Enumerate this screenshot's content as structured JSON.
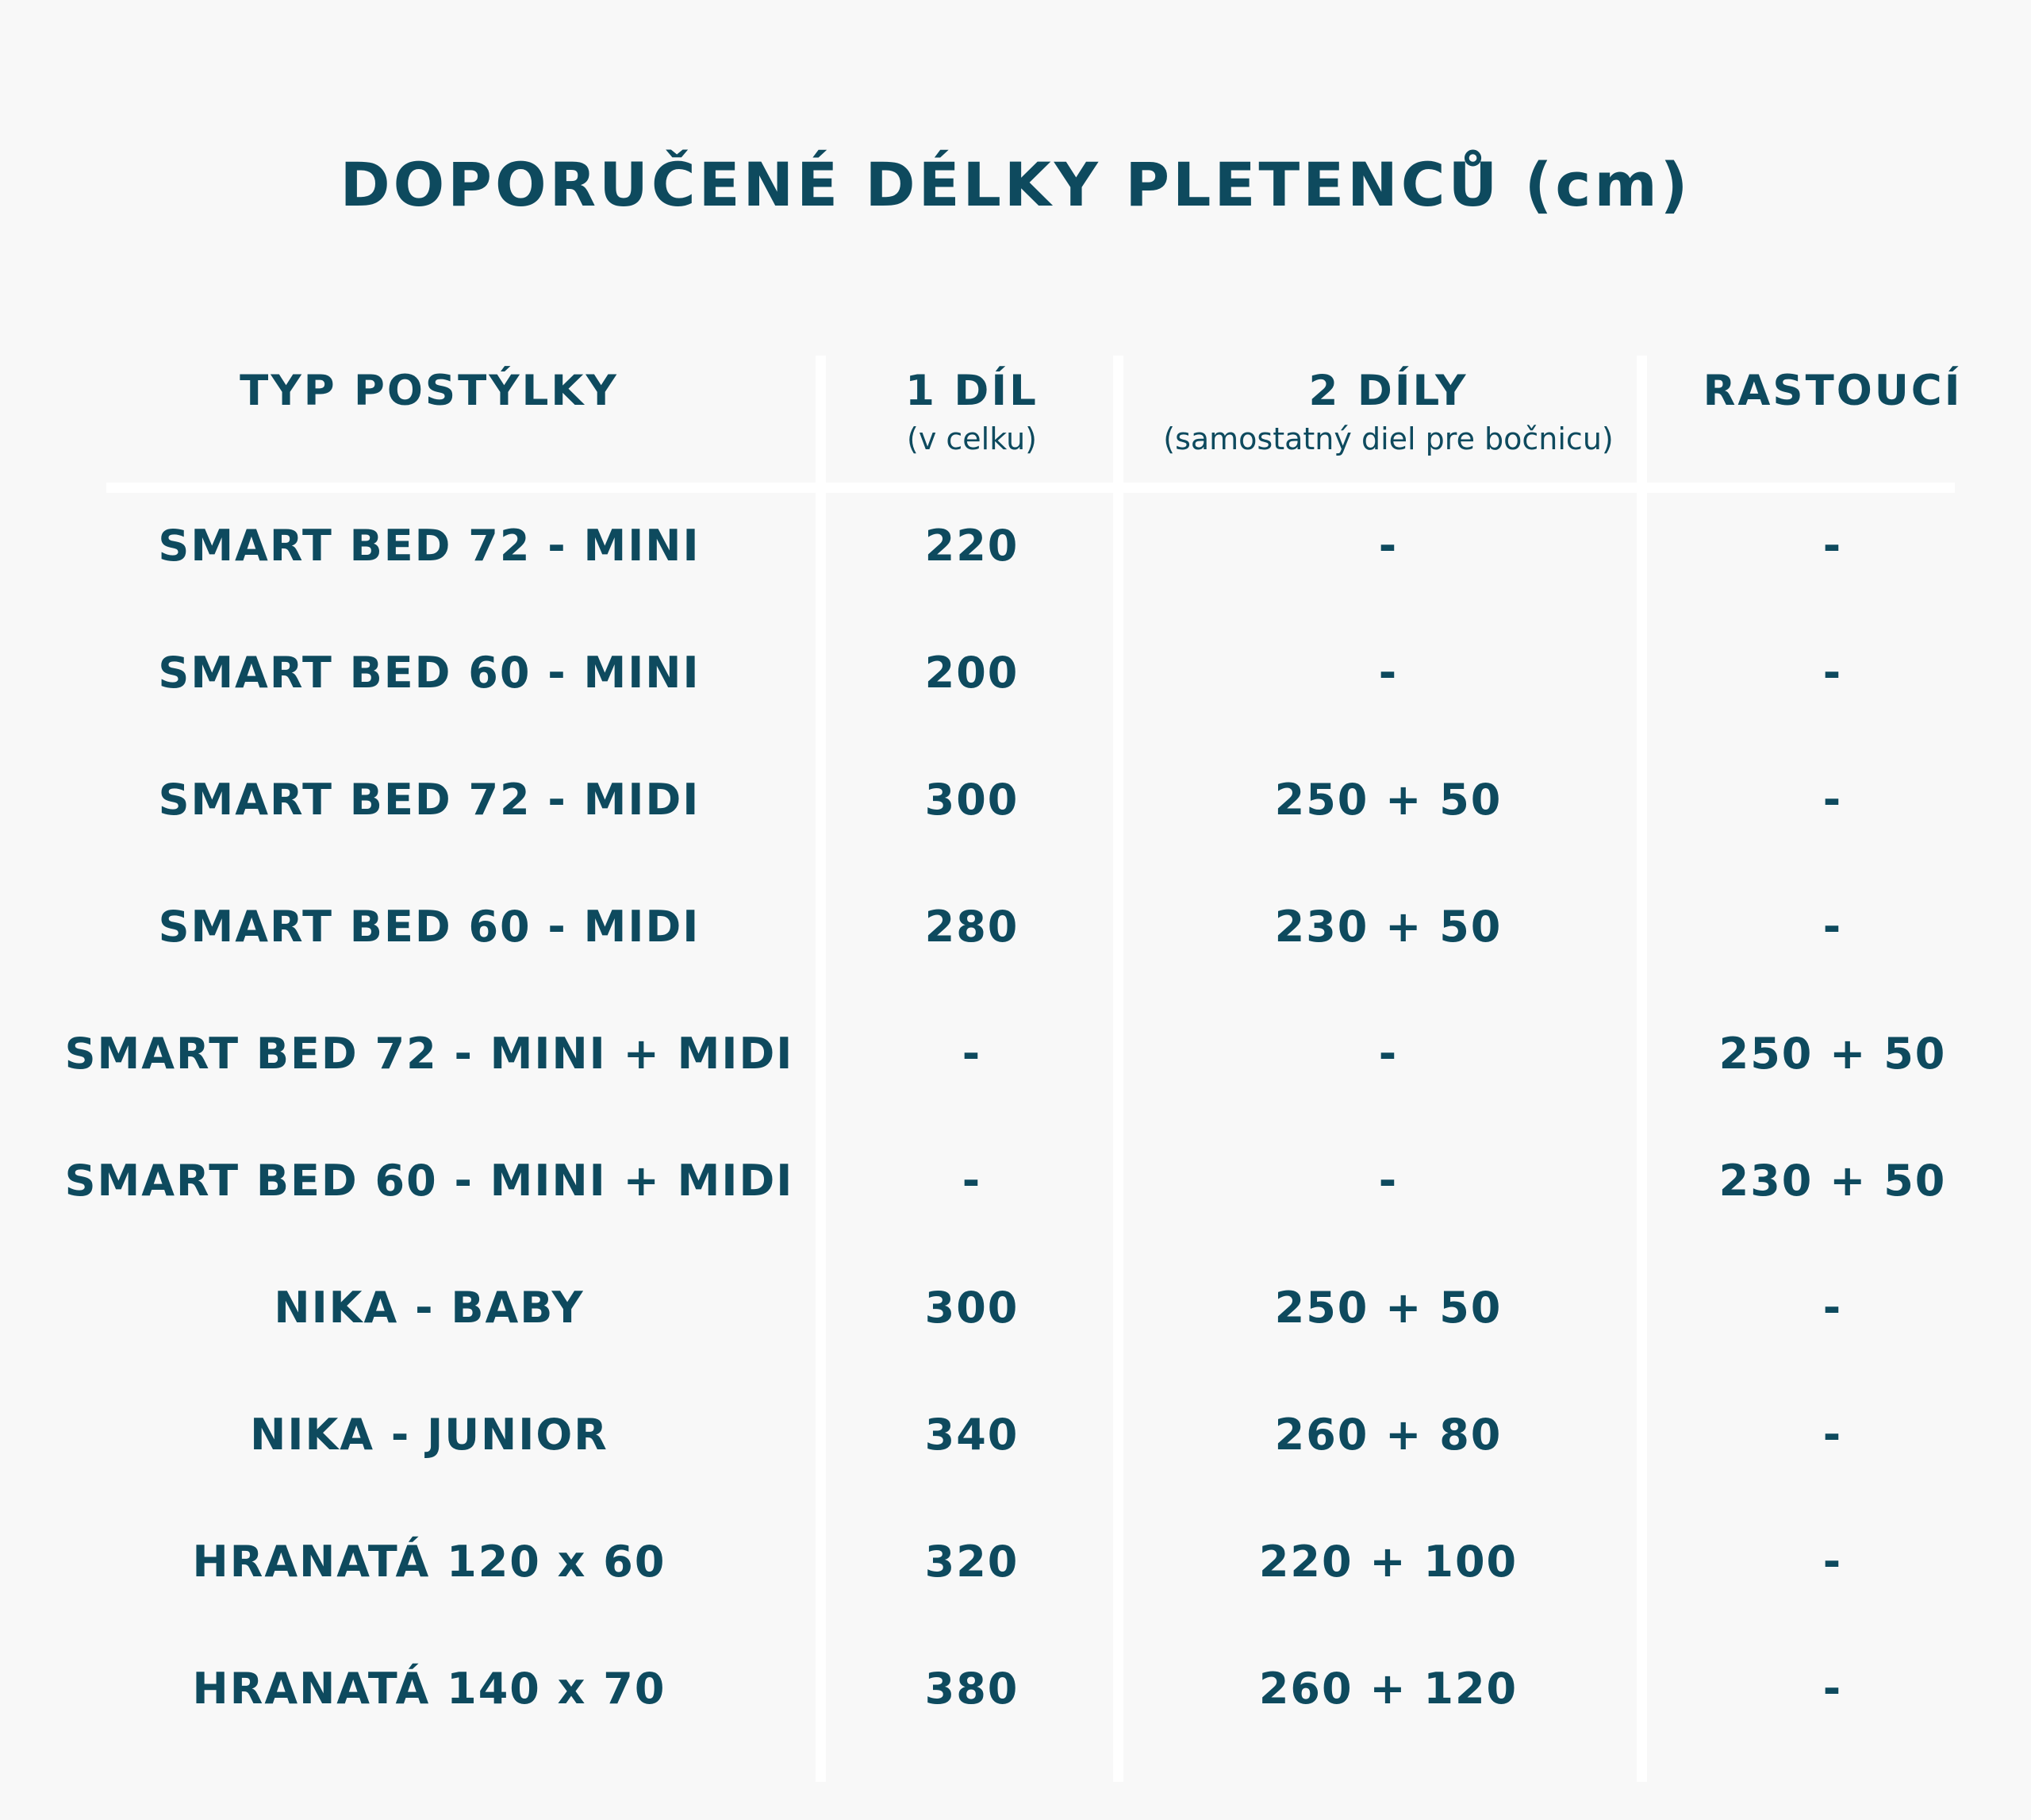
{
  "title": "DOPORUČENÉ DÉLKY PLETENCŮ (cm)",
  "colors": {
    "background": "#f8f8f8",
    "text": "#0e4a5e",
    "divider": "#ffffff"
  },
  "headers": [
    {
      "label": "TYP POSTÝLKY",
      "sub": ""
    },
    {
      "label": "1 DÍL",
      "sub": "(v celku)"
    },
    {
      "label": "2 DÍLY",
      "sub": "(samostatný diel pre bočnicu)"
    },
    {
      "label": "RASTOUCÍ",
      "sub": ""
    }
  ],
  "rows": [
    [
      "SMART BED 72 - MINI",
      "220",
      "-",
      "-"
    ],
    [
      "SMART BED 60 - MINI",
      "200",
      "-",
      "-"
    ],
    [
      "SMART BED 72 - MIDI",
      "300",
      "250 + 50",
      "-"
    ],
    [
      "SMART BED 60 - MIDI",
      "280",
      "230 + 50",
      "-"
    ],
    [
      "SMART BED 72 - MINI + MIDI",
      "-",
      "-",
      "250 + 50"
    ],
    [
      "SMART BED 60 - MINI + MIDI",
      "-",
      "-",
      "230 + 50"
    ],
    [
      "NIKA - BABY",
      "300",
      "250 + 50",
      "-"
    ],
    [
      "NIKA - JUNIOR",
      "340",
      "260 + 80",
      "-"
    ],
    [
      "HRANATÁ 120 x 60",
      "320",
      "220 + 100",
      "-"
    ],
    [
      "HRANATÁ 140 x 70",
      "380",
      "260 + 120",
      "-"
    ]
  ]
}
